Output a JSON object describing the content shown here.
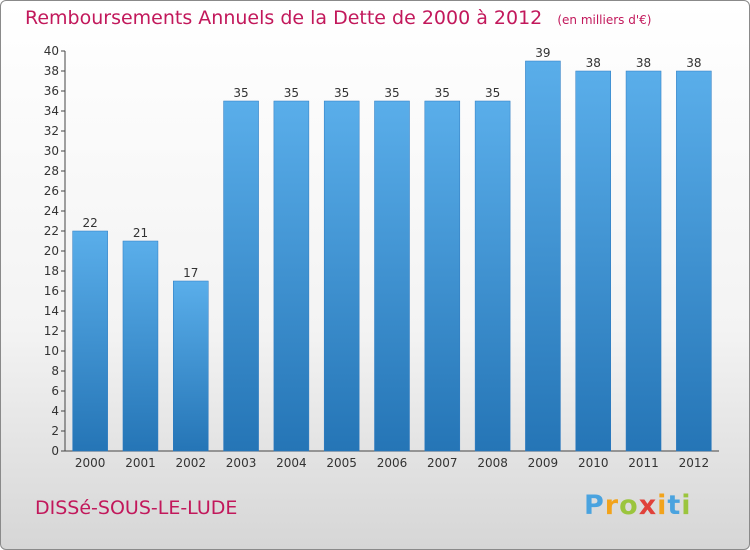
{
  "chart_data": {
    "type": "bar",
    "title": "Remboursements Annuels de la Dette de 2000 à 2012",
    "unit_note": "(en milliers d'€)",
    "categories": [
      "2000",
      "2001",
      "2002",
      "2003",
      "2004",
      "2005",
      "2006",
      "2007",
      "2008",
      "2009",
      "2010",
      "2011",
      "2012"
    ],
    "values": [
      22,
      21,
      17,
      35,
      35,
      35,
      35,
      35,
      35,
      39,
      38,
      38,
      38
    ],
    "ylim": [
      0,
      40
    ],
    "ytick_step": 2,
    "grid": false,
    "xlabel": "",
    "ylabel": "",
    "colors": {
      "bar": "#3f91d6",
      "bar_light": "#5aaeea",
      "bar_dark": "#2575b6",
      "title": "#c2185b"
    }
  },
  "footer": {
    "commune": "DISSé-SOUS-LE-LUDE"
  },
  "logo": {
    "letters": [
      "P",
      "r",
      "o",
      "x",
      "i",
      "t",
      "i"
    ],
    "colors": [
      "#4aa3df",
      "#f2a31b",
      "#9bc53d",
      "#e0413a",
      "#f2a31b",
      "#4aa3df",
      "#9bc53d"
    ]
  }
}
